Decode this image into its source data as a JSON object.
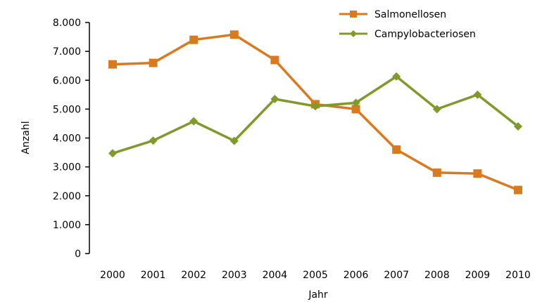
{
  "chart_data": {
    "type": "line",
    "title": "",
    "xlabel": "Jahr",
    "ylabel": "Anzahl",
    "categories": [
      "2000",
      "2001",
      "2002",
      "2003",
      "2004",
      "2005",
      "2006",
      "2007",
      "2008",
      "2009",
      "2010"
    ],
    "ylim": [
      0,
      8000
    ],
    "yticks": [
      0,
      1000,
      2000,
      3000,
      4000,
      5000,
      6000,
      7000,
      8000
    ],
    "ytick_labels": [
      "0",
      "1.000",
      "2.000",
      "3.000",
      "4.000",
      "5.000",
      "6.000",
      "7.000",
      "8.000"
    ],
    "grid": false,
    "legend_position": "top-right",
    "series": [
      {
        "name": "Salmonellosen",
        "color": "#d97a1e",
        "marker": "square",
        "values": [
          6550,
          6600,
          7400,
          7580,
          6700,
          5170,
          5000,
          3600,
          2800,
          2770,
          2200
        ]
      },
      {
        "name": "Campylobacteriosen",
        "color": "#7f9a2a",
        "marker": "diamond",
        "values": [
          3470,
          3910,
          4580,
          3900,
          5350,
          5100,
          5220,
          6130,
          5000,
          5500,
          4400
        ]
      }
    ]
  }
}
